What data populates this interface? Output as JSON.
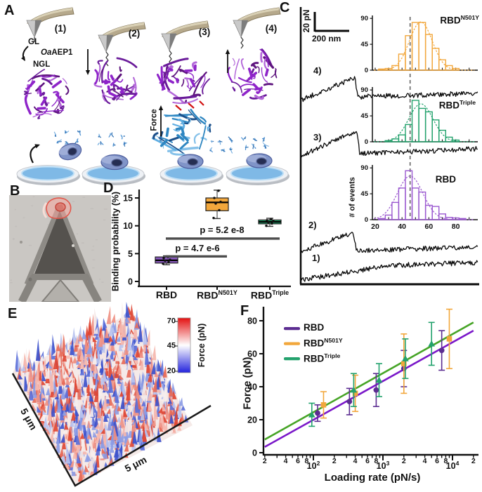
{
  "panel_labels": {
    "A": "A",
    "B": "B",
    "C": "C",
    "D": "D",
    "E": "E",
    "F": "F"
  },
  "panelA": {
    "steps": [
      "(1)",
      "(2)",
      "(3)",
      "(4)"
    ],
    "gl_label": "GL",
    "enzyme_italic": "Oa",
    "enzyme_rest": "AEP1",
    "ngl_label": "NGL",
    "force_label": "Force"
  },
  "panelC": {
    "scalebar_v": "20 pN",
    "scalebar_h": "200 nm",
    "curve_labels": [
      "4)",
      "3)",
      "2)",
      "1)"
    ],
    "events_ylabel": "# of events",
    "hist_titles": [
      {
        "base": "RBD",
        "sup": "N501Y"
      },
      {
        "base": "RBD",
        "sup": "Triple"
      },
      {
        "base": "RBD",
        "sup": ""
      }
    ]
  },
  "panelE": {
    "axis_left": "5 μm",
    "axis_right": "5 μm",
    "colorbar_label": "Force (pN)",
    "colorbar_ticks": [
      70,
      45,
      20
    ]
  },
  "colors": {
    "purple": "#5c2d91",
    "purple_line": "#7a17c9",
    "purple_box": "#8a5bbf",
    "hist_purple": "#9b59d0",
    "orange": "#f2a73c",
    "green": "#23a26d",
    "green_line": "#46a426",
    "guide": "#5a5a5a",
    "sig_line": "#4d4d4d"
  },
  "chart_data": [
    {
      "id": "C_force_curves_and_histograms",
      "type": "bar",
      "ylabel": "# of events",
      "yticks": [
        0,
        45,
        90
      ],
      "xticks": [
        20,
        40,
        60,
        80
      ],
      "x_unit": "pN",
      "bin_width": 5,
      "dashed_guide_x": 46,
      "histograms": [
        {
          "name": "RBD N501Y",
          "color_key": "orange",
          "first_bin": 25,
          "counts": [
            2,
            3,
            8,
            28,
            60,
            83,
            83,
            62,
            38,
            18,
            8,
            3
          ],
          "fit_mu": 54,
          "fit_sigma": 8.5,
          "fit_amp": 84
        },
        {
          "name": "RBD Triple",
          "color_key": "green",
          "first_bin": 30,
          "counts": [
            2,
            5,
            12,
            30,
            72,
            58,
            52,
            38,
            20,
            8,
            3
          ],
          "fit_mu": 54,
          "fit_sigma": 9,
          "fit_amp": 66
        },
        {
          "name": "RBD",
          "color_key": "hist_purple",
          "first_bin": 25,
          "counts": [
            2,
            8,
            30,
            55,
            85,
            55,
            48,
            25,
            23,
            10,
            4,
            3,
            2
          ],
          "fit_mu": 46,
          "fit_sigma": 9.5,
          "fit_amp": 76
        }
      ],
      "force_curves": [
        {
          "label": "4)",
          "rupture": true
        },
        {
          "label": "3)",
          "rupture": true
        },
        {
          "label": "2)",
          "rupture": true
        },
        {
          "label": "1)",
          "rupture": false
        }
      ]
    },
    {
      "id": "D_binding_probability",
      "type": "box",
      "ylabel": "Binding probability (%)",
      "yticks": [
        0,
        5,
        10,
        15
      ],
      "categories": [
        {
          "base": "RBD",
          "sup": ""
        },
        {
          "base": "RBD",
          "sup": "N501Y"
        },
        {
          "base": "RBD",
          "sup": "Triple"
        }
      ],
      "boxes": [
        {
          "median": 3.8,
          "q1": 3.3,
          "q3": 4.4,
          "lo": 3.0,
          "hi": 4.6,
          "points": [
            3.2,
            3.5,
            3.7,
            3.9,
            4.2,
            4.4
          ],
          "color_key": "purple_box"
        },
        {
          "median": 14.2,
          "q1": 12.7,
          "q3": 15.0,
          "lo": 11.3,
          "hi": 16.4,
          "points": [
            11.4,
            12.8,
            14.0,
            14.3,
            15.0,
            16.3
          ],
          "color_key": "orange"
        },
        {
          "median": 10.7,
          "q1": 10.35,
          "q3": 11.05,
          "lo": 9.9,
          "hi": 11.35,
          "points": [
            10.0,
            10.4,
            10.6,
            10.8,
            11.0,
            11.2
          ],
          "color_key": "green"
        }
      ],
      "significance": [
        {
          "label": "p = 4.7 e-6",
          "from": 0,
          "to": 1,
          "y": 4.5
        },
        {
          "label": "p = 5.2 e-8",
          "from": 0,
          "to": 2,
          "y": 7.7
        }
      ]
    },
    {
      "id": "E_adhesion_force_map",
      "type": "heatmap",
      "x_extent": "5 μm",
      "y_extent": "5 μm",
      "colorbar": {
        "label": "Force (pN)",
        "ticks": [
          70,
          45,
          20
        ],
        "min": 20,
        "max": 70
      }
    },
    {
      "id": "F_dynamic_force_spectroscopy",
      "type": "scatter",
      "xlabel": "Loading rate (pN/s)",
      "ylabel": "Force (pN)",
      "x_log_range": [
        20,
        20000
      ],
      "ylim": [
        0,
        88
      ],
      "yticks": [
        0,
        20,
        40,
        60,
        80
      ],
      "x_decades": [
        2,
        3,
        4
      ],
      "x_minor_labels": [
        2,
        4,
        6,
        8
      ],
      "series": [
        {
          "name": "RBD",
          "marker": "circle",
          "color_key": "purple",
          "x": [
            115,
            330,
            800,
            2000,
            7000
          ],
          "y": [
            24,
            31,
            38,
            51,
            62
          ],
          "err": [
            5,
            8,
            10,
            11,
            12
          ]
        },
        {
          "name": "RBD N501Y",
          "marker": "square",
          "color_key": "orange",
          "x": [
            140,
            400,
            2000,
            9000
          ],
          "y": [
            29,
            36,
            54,
            69
          ],
          "err": [
            8,
            11,
            18,
            18
          ]
        },
        {
          "name": "RBD Triple",
          "marker": "triangle",
          "color_key": "green",
          "x": [
            95,
            380,
            880,
            2100,
            5000
          ],
          "y": [
            23,
            38,
            44,
            57,
            66
          ],
          "err": [
            7,
            10,
            10,
            12,
            13
          ]
        }
      ],
      "fit_lines": [
        {
          "color_key": "purple_line",
          "x": [
            20,
            20000
          ],
          "y": [
            3.5,
            74
          ]
        },
        {
          "color_key": "green_line",
          "x": [
            20,
            20000
          ],
          "y": [
            8,
            79
          ]
        }
      ],
      "legend": [
        {
          "base": "RBD",
          "sup": "",
          "color_key": "purple"
        },
        {
          "base": "RBD",
          "sup": "N501Y",
          "color_key": "orange"
        },
        {
          "base": "RBD",
          "sup": "Triple",
          "color_key": "green"
        }
      ]
    }
  ]
}
